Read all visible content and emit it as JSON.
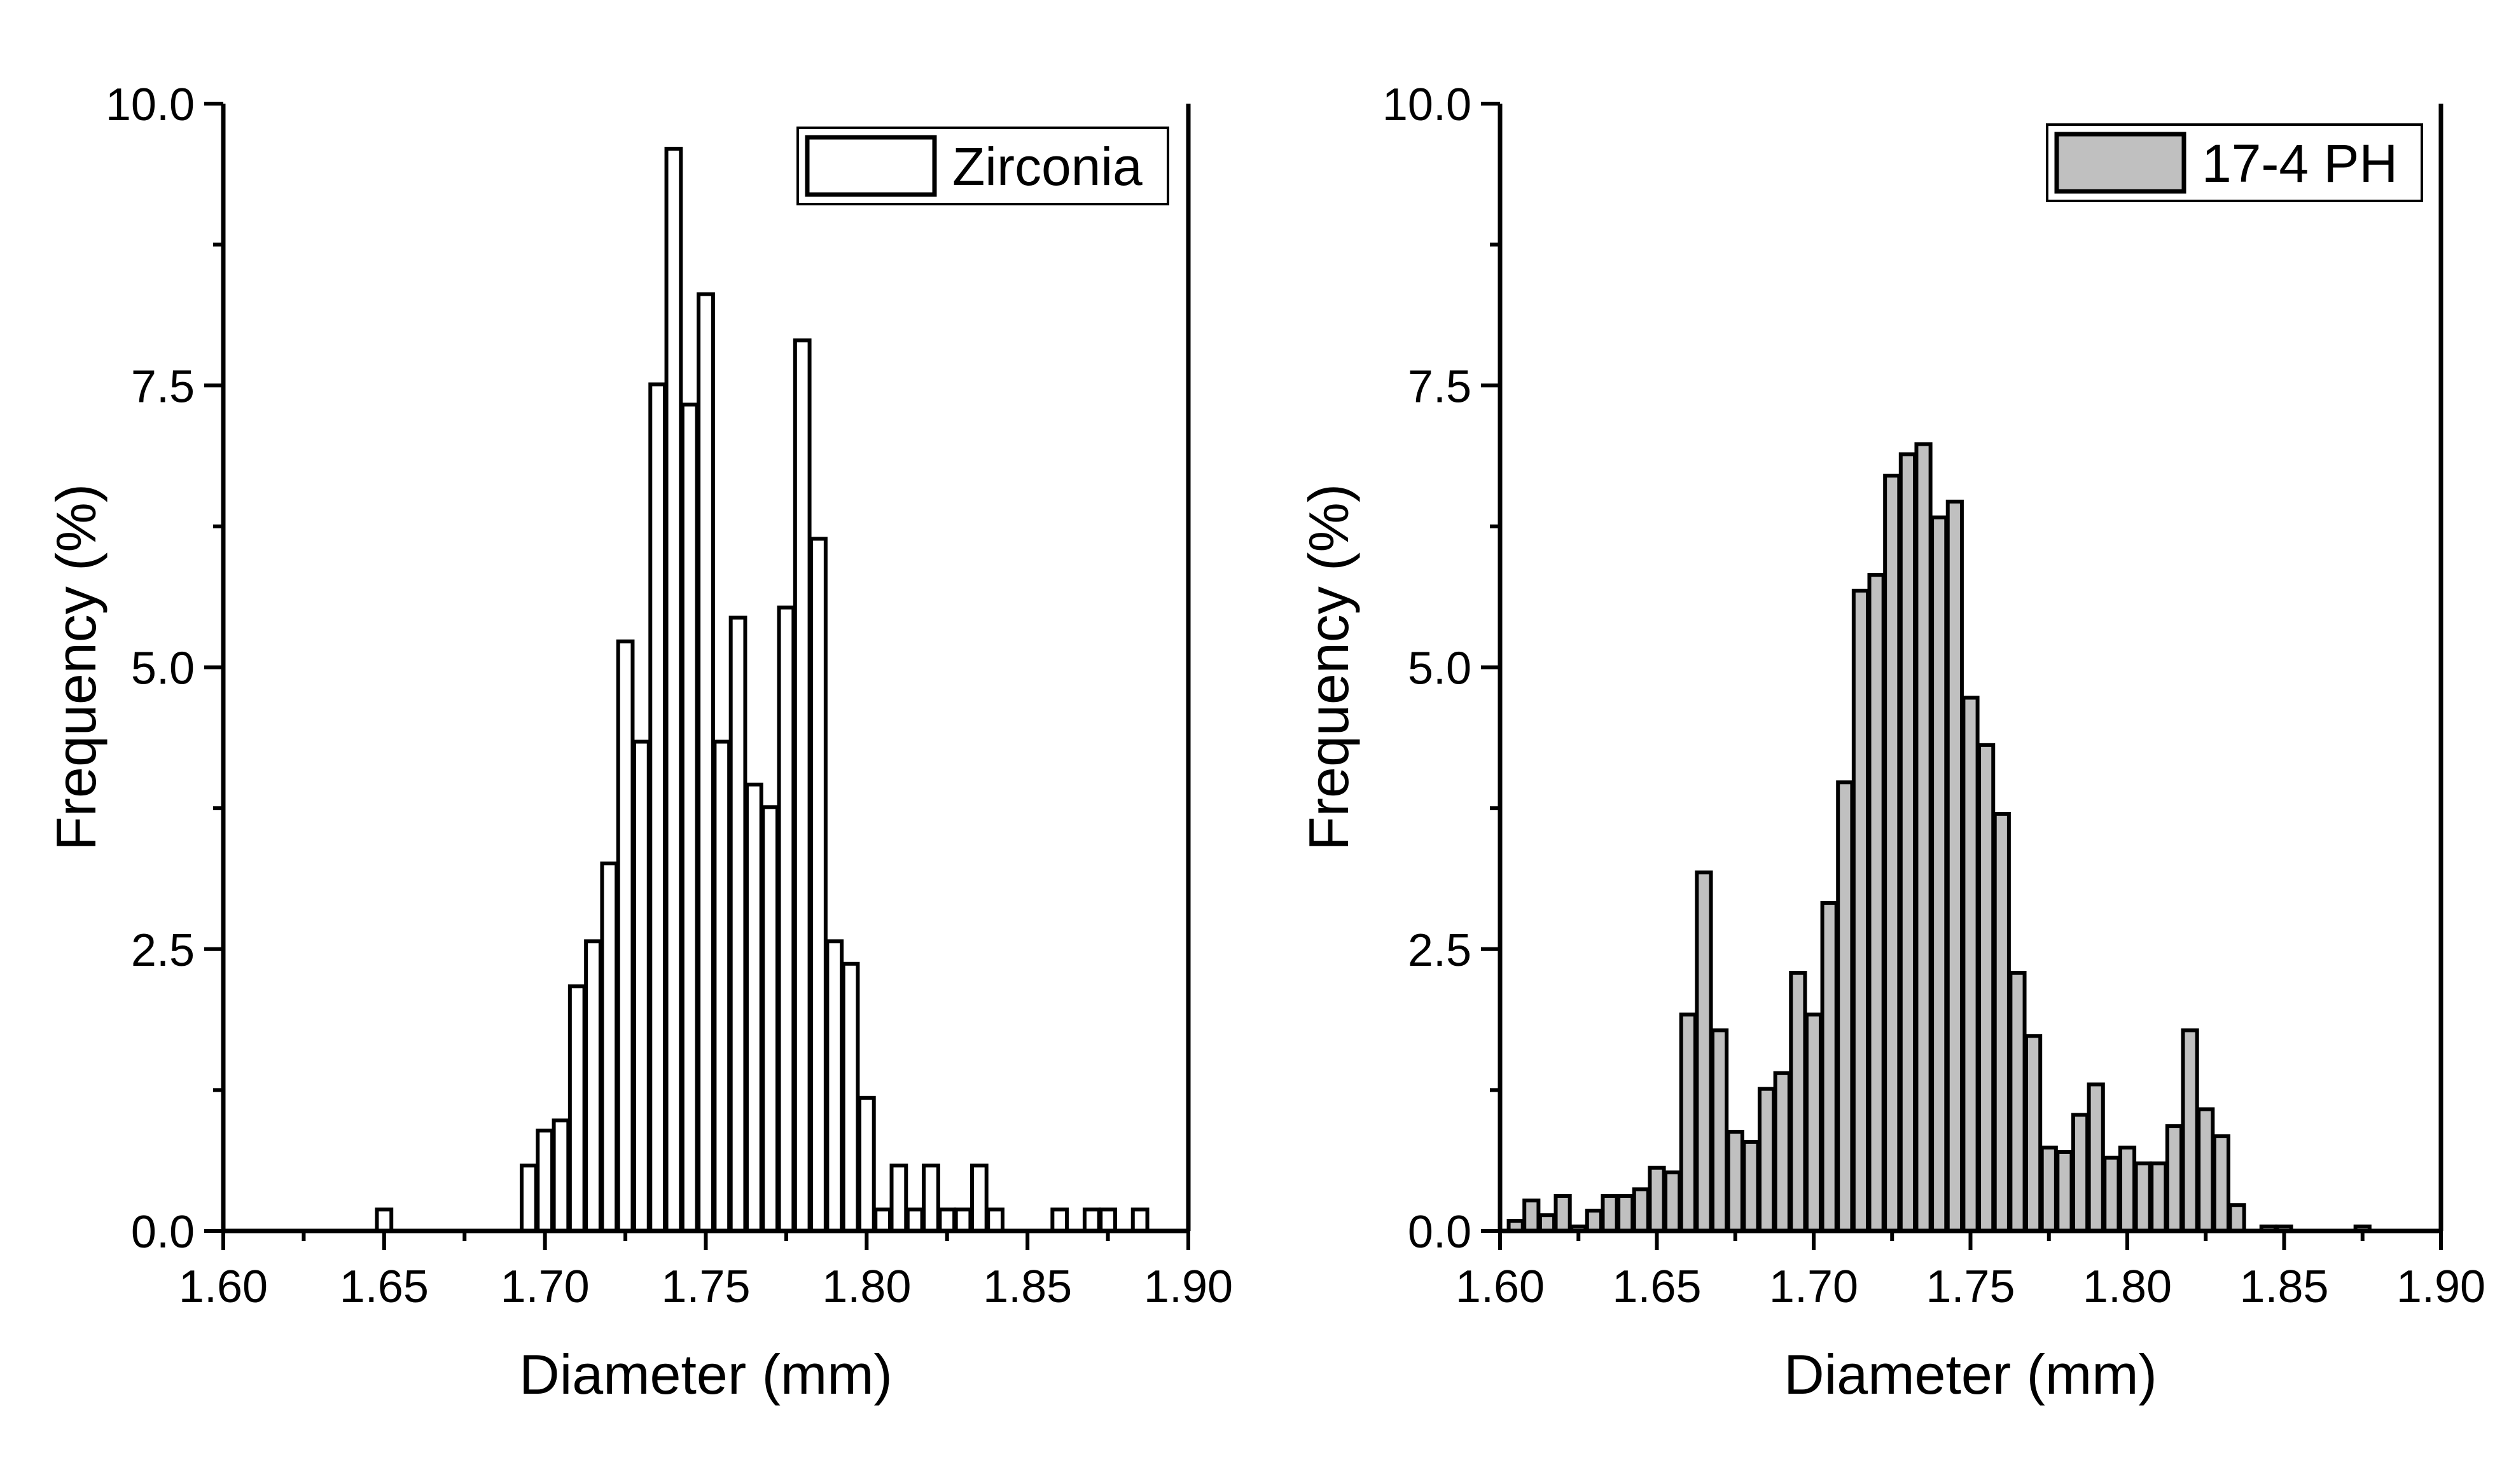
{
  "chart_data": [
    {
      "type": "bar",
      "title": "",
      "xlabel": "Diameter (mm)",
      "ylabel": "Frequency (%)",
      "xlim": [
        1.6,
        1.9
      ],
      "ylim": [
        0,
        10
      ],
      "grid": false,
      "legend_position": "top-right",
      "xticks": [
        "1.60",
        "1.65",
        "1.70",
        "1.75",
        "1.80",
        "1.85",
        "1.90"
      ],
      "yticks": [
        "0.0",
        "2.5",
        "5.0",
        "7.5",
        "10.0"
      ],
      "series": [
        {
          "name": "Zirconia",
          "color": "#ffffff",
          "x": [
            1.65,
            1.695,
            1.7,
            1.705,
            1.71,
            1.715,
            1.72,
            1.725,
            1.73,
            1.735,
            1.74,
            1.745,
            1.75,
            1.755,
            1.76,
            1.765,
            1.77,
            1.775,
            1.78,
            1.785,
            1.79,
            1.795,
            1.8,
            1.805,
            1.81,
            1.815,
            1.82,
            1.825,
            1.83,
            1.835,
            1.84,
            1.86,
            1.87,
            1.875,
            1.885
          ],
          "values": [
            0.19,
            0.58,
            0.89,
            0.98,
            2.17,
            2.57,
            3.26,
            5.23,
            4.34,
            7.51,
            9.6,
            7.33,
            8.31,
            4.34,
            5.44,
            3.96,
            3.76,
            5.53,
            7.9,
            6.14,
            2.57,
            2.37,
            1.18,
            0.19,
            0.58,
            0.19,
            0.58,
            0.19,
            0.19,
            0.58,
            0.19,
            0.19,
            0.19,
            0.19,
            0.19
          ]
        }
      ]
    },
    {
      "type": "bar",
      "title": "",
      "xlabel": "Diameter (mm)",
      "ylabel": "Frequency (%)",
      "xlim": [
        1.6,
        1.9
      ],
      "ylim": [
        0,
        10
      ],
      "grid": false,
      "legend_position": "top-right",
      "xticks": [
        "1.60",
        "1.65",
        "1.70",
        "1.75",
        "1.80",
        "1.85",
        "1.90"
      ],
      "yticks": [
        "0.0",
        "2.5",
        "5.0",
        "7.5",
        "10.0"
      ],
      "series": [
        {
          "name": "17-4 PH",
          "color": "#c0c0c0",
          "x": [
            1.605,
            1.61,
            1.615,
            1.62,
            1.625,
            1.63,
            1.635,
            1.64,
            1.645,
            1.65,
            1.655,
            1.66,
            1.665,
            1.67,
            1.675,
            1.68,
            1.685,
            1.69,
            1.695,
            1.7,
            1.705,
            1.71,
            1.715,
            1.72,
            1.725,
            1.73,
            1.735,
            1.74,
            1.745,
            1.75,
            1.755,
            1.76,
            1.765,
            1.77,
            1.775,
            1.78,
            1.785,
            1.79,
            1.795,
            1.8,
            1.805,
            1.81,
            1.815,
            1.82,
            1.825,
            1.83,
            1.835,
            1.845,
            1.85,
            1.875
          ],
          "values": [
            0.09,
            0.27,
            0.14,
            0.31,
            0.04,
            0.18,
            0.31,
            0.31,
            0.37,
            0.56,
            0.52,
            1.92,
            3.18,
            1.78,
            0.88,
            0.79,
            1.26,
            1.4,
            2.29,
            1.92,
            2.91,
            3.98,
            5.68,
            5.82,
            6.7,
            6.89,
            6.98,
            6.33,
            6.47,
            4.73,
            4.31,
            3.7,
            2.29,
            1.73,
            0.74,
            0.7,
            1.03,
            1.3,
            0.65,
            0.74,
            0.6,
            0.6,
            0.93,
            1.78,
            1.08,
            0.84,
            0.23,
            0.04,
            0.04,
            0.04
          ]
        }
      ]
    }
  ]
}
